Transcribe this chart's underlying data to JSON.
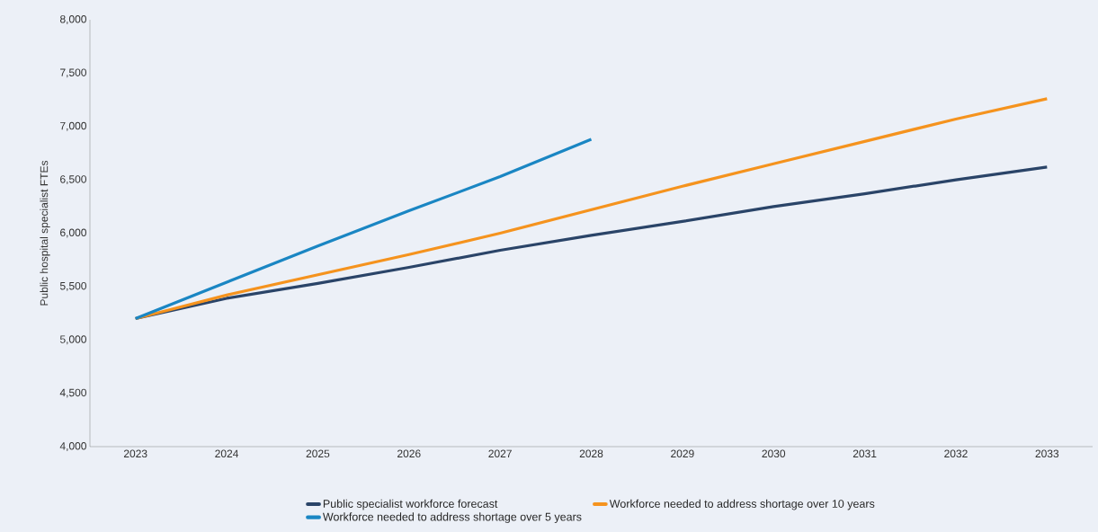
{
  "chart_data": {
    "type": "line",
    "ylabel": "Public hospital specialist FTEs",
    "categories": [
      "2023",
      "2024",
      "2025",
      "2026",
      "2027",
      "2028",
      "2029",
      "2030",
      "2031",
      "2032",
      "2033"
    ],
    "ylim": [
      4000,
      8000
    ],
    "yticks": [
      {
        "value": 4000,
        "label": "4,000"
      },
      {
        "value": 4500,
        "label": "4,500"
      },
      {
        "value": 5000,
        "label": "5,000"
      },
      {
        "value": 5500,
        "label": "5,500"
      },
      {
        "value": 6000,
        "label": "6,000"
      },
      {
        "value": 6500,
        "label": "6,500"
      },
      {
        "value": 7000,
        "label": "7,000"
      },
      {
        "value": 7500,
        "label": "7,500"
      },
      {
        "value": 8000,
        "label": "8,000"
      }
    ],
    "series": [
      {
        "name": "Public specialist workforce forecast",
        "color": "#2a4468",
        "values": [
          5200,
          5390,
          5530,
          5680,
          5840,
          5980,
          6110,
          6250,
          6370,
          6500,
          6620
        ]
      },
      {
        "name": "Workforce needed to address shortage over 10 years",
        "color": "#f5931e",
        "values": [
          5200,
          5420,
          5610,
          5800,
          6000,
          6220,
          6440,
          6650,
          6860,
          7070,
          7260
        ]
      },
      {
        "name": "Workforce needed to address shortage over 5 years",
        "color": "#1a86c3",
        "values": [
          5200,
          5540,
          5880,
          6210,
          6530,
          6880,
          null,
          null,
          null,
          null,
          null
        ]
      }
    ],
    "legend": "bottom",
    "grid": false
  }
}
